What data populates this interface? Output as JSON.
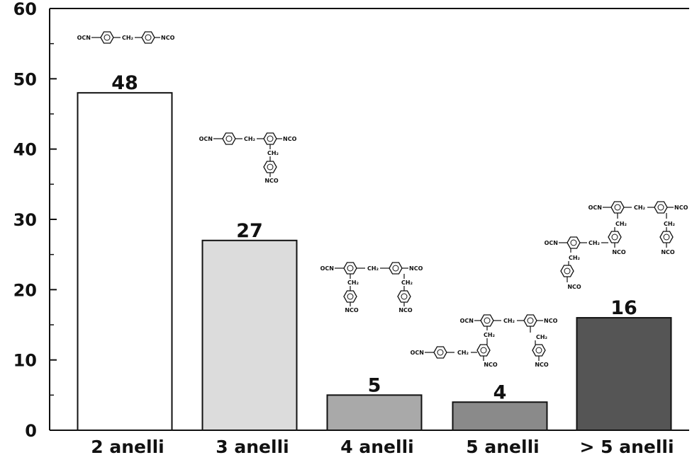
{
  "chart_data": {
    "type": "bar",
    "categories": [
      "2 anelli",
      "3 anelli",
      "4 anelli",
      "5 anelli",
      "> 5 anelli"
    ],
    "values": [
      48,
      27,
      5,
      4,
      16
    ],
    "data_labels": [
      "48",
      "27",
      "5",
      "4",
      "16"
    ],
    "ylim": [
      0,
      60
    ],
    "yticks": [
      0,
      10,
      20,
      30,
      40,
      50,
      60
    ],
    "ytick_labels": [
      "0",
      "10",
      "20",
      "30",
      "40",
      "50",
      "60"
    ],
    "minor_ytick_step": 5,
    "title": "",
    "xlabel": "",
    "ylabel": "",
    "grid": false,
    "legend": false,
    "bar_colors": [
      "#ffffff",
      "#dcdcdc",
      "#a9a9a9",
      "#8a8a8a",
      "#555555"
    ],
    "bar_edge_color": "#111111",
    "structure_labels": {
      "left_end": "OCN",
      "right_end": "NCO",
      "linker": "CH₂",
      "pendant": "NCO"
    }
  }
}
